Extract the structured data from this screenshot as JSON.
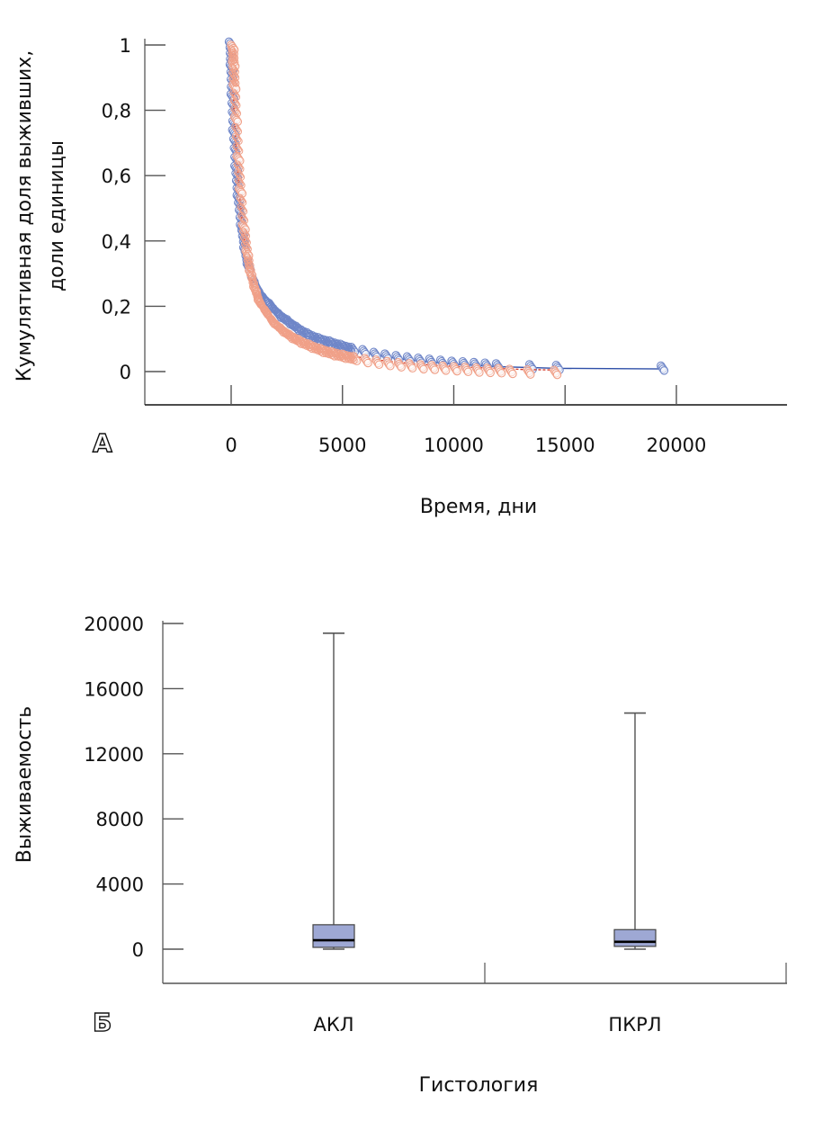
{
  "chart_data": [
    {
      "type": "scatter",
      "panel_label": "А",
      "title": "",
      "xlabel": "Время, дни",
      "ylabel_lines": [
        "Кумулятивная доля выживших,",
        "доли единицы"
      ],
      "xlim": [
        -3900,
        25000
      ],
      "ylim": [
        -0.1,
        1
      ],
      "xticks": [
        0,
        5000,
        10000,
        15000,
        20000
      ],
      "xtick_labels": [
        "0",
        "5000",
        "10000",
        "15000",
        "20000"
      ],
      "yticks": [
        0,
        0.2,
        0.4,
        0.6,
        0.8,
        1
      ],
      "ytick_labels": [
        "0",
        "0,2",
        "0,4",
        "0,6",
        "0,8",
        "1"
      ],
      "grid": false,
      "series": [
        {
          "name": "АКЛ",
          "color": "#6f86c8",
          "line_color": "#2e4fa8",
          "x": [
            0,
            40,
            80,
            150,
            250,
            350,
            500,
            650,
            800,
            1000,
            1200,
            1500,
            1800,
            2200,
            2600,
            3000,
            3500,
            4000,
            4500,
            5000,
            5500,
            6000,
            6500,
            7000,
            7500,
            8000,
            8500,
            9000,
            9500,
            10000,
            10500,
            11000,
            11500,
            12000,
            13500,
            14700,
            19400
          ],
          "y": [
            1,
            0.93,
            0.84,
            0.73,
            0.62,
            0.53,
            0.44,
            0.37,
            0.32,
            0.28,
            0.25,
            0.22,
            0.2,
            0.17,
            0.15,
            0.13,
            0.11,
            0.095,
            0.085,
            0.075,
            0.065,
            0.058,
            0.05,
            0.045,
            0.04,
            0.036,
            0.032,
            0.029,
            0.026,
            0.023,
            0.021,
            0.019,
            0.017,
            0.015,
            0.012,
            0.01,
            0.008
          ]
        },
        {
          "name": "ПКРЛ",
          "color": "#f0a088",
          "line_color": "#d43a2a",
          "x": [
            0,
            40,
            80,
            150,
            250,
            350,
            500,
            650,
            800,
            1000,
            1200,
            1500,
            1800,
            2200,
            2600,
            3000,
            3500,
            4000,
            4500,
            5000,
            5500,
            6000,
            6500,
            7000,
            7500,
            8000,
            8500,
            9000,
            9500,
            10000,
            10500,
            11000,
            11500,
            12000,
            12500,
            13300,
            14500
          ],
          "y": [
            1,
            0.95,
            0.88,
            0.78,
            0.66,
            0.56,
            0.45,
            0.37,
            0.31,
            0.26,
            0.22,
            0.19,
            0.16,
            0.135,
            0.115,
            0.1,
            0.085,
            0.072,
            0.062,
            0.054,
            0.047,
            0.041,
            0.036,
            0.032,
            0.028,
            0.025,
            0.022,
            0.02,
            0.018,
            0.016,
            0.014,
            0.012,
            0.011,
            0.01,
            0.008,
            0.006,
            0.005
          ]
        }
      ]
    },
    {
      "type": "box",
      "panel_label": "Б",
      "title": "",
      "xlabel": "Гистология",
      "ylabel": "Выживаемость",
      "ylim": [
        -2000,
        20000
      ],
      "yticks": [
        0,
        4000,
        8000,
        12000,
        16000,
        20000
      ],
      "ytick_labels": [
        "0",
        "4000",
        "8000",
        "12000",
        "16000",
        "20000"
      ],
      "categories": [
        "АКЛ",
        "ПКРЛ"
      ],
      "box_color": "#9ea8d4",
      "boxes": [
        {
          "category": "АКЛ",
          "min": 0,
          "q1": 110,
          "median": 550,
          "q3": 1500,
          "max": 19400
        },
        {
          "category": "ПКРЛ",
          "min": 0,
          "q1": 170,
          "median": 450,
          "q3": 1200,
          "max": 14500
        }
      ]
    }
  ]
}
